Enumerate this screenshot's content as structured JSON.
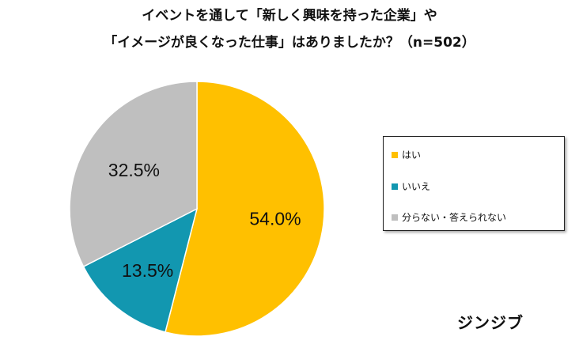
{
  "title_lines": [
    "イベントを通して「新しく興味を持った企業」や",
    "「イメージが良くなった仕事」はありましたか？（n=502）"
  ],
  "brand": "ジンジブ",
  "chart_data": {
    "type": "pie",
    "title": "イベントを通して「新しく興味を持った企業」や「イメージが良くなった仕事」はありましたか？（n=502）",
    "categories": [
      "はい",
      "いいえ",
      "分らない・答えられない"
    ],
    "values": [
      54.0,
      13.5,
      32.5
    ],
    "value_labels": [
      "54.0%",
      "13.5%",
      "32.5%"
    ],
    "colors": [
      "#FFC000",
      "#1297B0",
      "#BFBFBF"
    ],
    "start_angle": "12 o'clock",
    "direction": "clockwise",
    "legend_placement": "right"
  }
}
